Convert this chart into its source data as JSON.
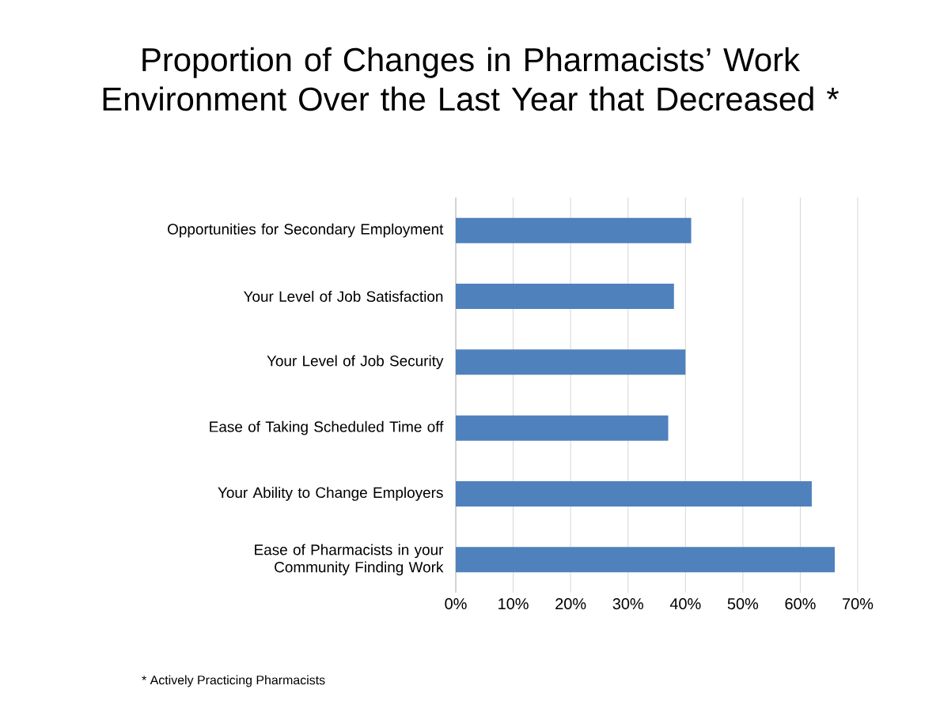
{
  "chart_data": {
    "type": "bar",
    "orientation": "horizontal",
    "title": "Proportion of Changes in Pharmacists’ Work Environment Over the Last Year that Decreased *",
    "categories": [
      "Opportunities for Secondary Employment",
      "Your Level of Job Satisfaction",
      "Your Level of Job Security",
      "Ease of Taking Scheduled Time off",
      "Your Ability to Change Employers",
      "Ease of Pharmacists in your Community Finding Work"
    ],
    "values": [
      41,
      38,
      40,
      37,
      62,
      66
    ],
    "color": "#4f81bd",
    "xlim": [
      0,
      70
    ],
    "xticks": [
      {
        "value": 0,
        "label": "0%"
      },
      {
        "value": 10,
        "label": "10%"
      },
      {
        "value": 20,
        "label": "20%"
      },
      {
        "value": 30,
        "label": "30%"
      },
      {
        "value": 40,
        "label": "40%"
      },
      {
        "value": 50,
        "label": "50%"
      },
      {
        "value": 60,
        "label": "60%"
      },
      {
        "value": 70,
        "label": "70%"
      }
    ],
    "grid": "x",
    "annotations": [
      "* Actively Practicing Pharmacists"
    ]
  }
}
